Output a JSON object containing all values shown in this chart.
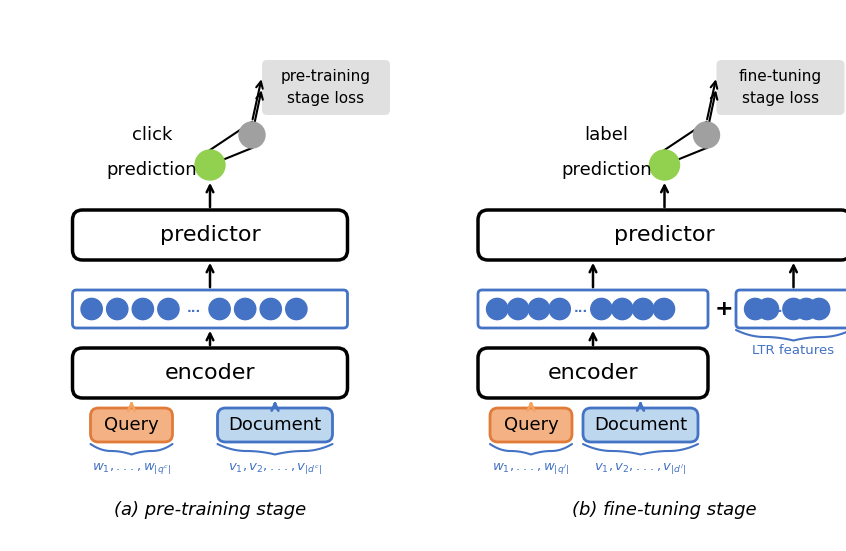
{
  "bg_color": "#ffffff",
  "diagram_title_a": "(a) pre-training stage",
  "diagram_title_b": "(b) fine-tuning stage",
  "loss_box_a": "pre-training\nstage loss",
  "loss_box_b": "fine-tuning\nstage loss",
  "predictor_text": "predictor",
  "encoder_text": "encoder",
  "query_text": "Query",
  "document_text": "Document",
  "click_text": "click",
  "prediction_text": "prediction",
  "label_text": "label",
  "ltr_text": "LTR features",
  "brace_label_a_q": "$w_1,...,w_{|q^c|}$",
  "brace_label_a_d": "$v_1, v_2,...,v_{|d^c|}$",
  "brace_label_b_q": "$w_1,...,w_{|q^l|}$",
  "brace_label_b_d": "$v_1, v_2,...,v_{|d^l|}$",
  "blue_dot_color": "#4472C4",
  "query_box_color": "#F4B183",
  "query_box_edge": "#E07B39",
  "doc_box_color": "#BDD7EE",
  "doc_box_edge": "#4472C4",
  "predictor_box_edge": "#000000",
  "encoder_box_edge": "#000000",
  "blue_embed_border": "#4472C4",
  "loss_box_bg": "#E0E0E0",
  "green_node_color": "#92D050",
  "gray_node_color": "#A0A0A0",
  "brace_color": "#4472C4",
  "arrow_color": "#000000",
  "orange_arrow_color": "#F4A460"
}
